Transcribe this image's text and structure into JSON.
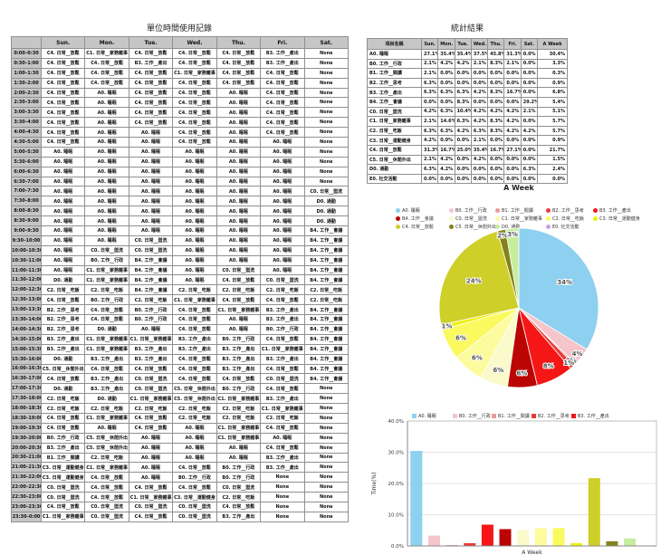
{
  "record_table": {
    "title": "單位時間使用記錄",
    "columns": [
      "Sun.",
      "Mon.",
      "Tue.",
      "Wed.",
      "Thu.",
      "Fri.",
      "Sat."
    ],
    "rows": [
      {
        "time": "0:00–0:30",
        "cells": [
          "C4",
          "C1",
          "C4",
          "C4",
          "C4",
          "B3",
          "None"
        ]
      },
      {
        "time": "0:30–1:00",
        "cells": [
          "C4",
          "C4",
          "B3",
          "C4",
          "C4",
          "B3",
          "None"
        ]
      },
      {
        "time": "1:00–1:30",
        "cells": [
          "C4",
          "C4",
          "C4",
          "C1",
          "C4",
          "C4",
          "None"
        ]
      },
      {
        "time": "1:30–2:00",
        "cells": [
          "C4",
          "C4",
          "C4",
          "C4",
          "C4",
          "C4",
          "None"
        ]
      },
      {
        "time": "2:00–2:30",
        "cells": [
          "C4",
          "A0",
          "C4",
          "C4",
          "A0",
          "C4",
          "None"
        ]
      },
      {
        "time": "2:30–3:00",
        "cells": [
          "C4",
          "A0",
          "C4",
          "C4",
          "A0",
          "C4",
          "None"
        ]
      },
      {
        "time": "3:00–3:30",
        "cells": [
          "C4",
          "A0",
          "C4",
          "C4",
          "A0",
          "C4",
          "None"
        ]
      },
      {
        "time": "3:30–4:00",
        "cells": [
          "C4",
          "A0",
          "C4",
          "C4",
          "A0",
          "C4",
          "None"
        ]
      },
      {
        "time": "4:00–4:30",
        "cells": [
          "C4",
          "A0",
          "A0",
          "C4",
          "A0",
          "C4",
          "None"
        ]
      },
      {
        "time": "4:30–5:00",
        "cells": [
          "C4",
          "A0",
          "A0",
          "C4",
          "A0",
          "A0",
          "None"
        ]
      },
      {
        "time": "5:00–5:30",
        "cells": [
          "A0",
          "A0",
          "A0",
          "A0",
          "A0",
          "A0",
          "None"
        ]
      },
      {
        "time": "5:30–6:00",
        "cells": [
          "A0",
          "A0",
          "A0",
          "A0",
          "A0",
          "A0",
          "None"
        ]
      },
      {
        "time": "6:00–6:30",
        "cells": [
          "A0",
          "A0",
          "A0",
          "A0",
          "A0",
          "A0",
          "None"
        ]
      },
      {
        "time": "6:30–7:00",
        "cells": [
          "A0",
          "A0",
          "A0",
          "A0",
          "A0",
          "A0",
          "None"
        ]
      },
      {
        "time": "7:00–7:30",
        "cells": [
          "A0",
          "A0",
          "A0",
          "A0",
          "A0",
          "A0",
          "C0"
        ]
      },
      {
        "time": "7:30–8:00",
        "cells": [
          "A0",
          "A0",
          "A0",
          "A0",
          "A0",
          "A0",
          "D0"
        ]
      },
      {
        "time": "8:00–8:30",
        "cells": [
          "A0",
          "A0",
          "A0",
          "A0",
          "A0",
          "A0",
          "D0"
        ]
      },
      {
        "time": "8:30–9:00",
        "cells": [
          "A0",
          "A0",
          "A0",
          "A0",
          "A0",
          "A0",
          "D0"
        ]
      },
      {
        "time": "9:00–9:30",
        "cells": [
          "A0",
          "A0",
          "A0",
          "A0",
          "A0",
          "A0",
          "B4"
        ]
      },
      {
        "time": "9:30–10:00",
        "cells": [
          "A0",
          "A0",
          "C0",
          "A0",
          "A0",
          "A0",
          "B4"
        ]
      },
      {
        "time": "10:00–10:30",
        "cells": [
          "A0",
          "C0",
          "C0",
          "A0",
          "A0",
          "A0",
          "B4"
        ]
      },
      {
        "time": "10:30–11:00",
        "cells": [
          "A0",
          "B0",
          "B4",
          "A0",
          "A0",
          "A0",
          "B4"
        ]
      },
      {
        "time": "11:00–11:30",
        "cells": [
          "A0",
          "C1",
          "B4",
          "A0",
          "C0",
          "A0",
          "B4"
        ]
      },
      {
        "time": "11:30–12:00",
        "cells": [
          "D0",
          "C1",
          "B4",
          "A0",
          "C4",
          "C0",
          "B4"
        ]
      },
      {
        "time": "12:00–12:30",
        "cells": [
          "C2",
          "C2",
          "B4",
          "C2",
          "C2",
          "C2",
          "C2"
        ]
      },
      {
        "time": "12:30–13:00",
        "cells": [
          "C4",
          "B0",
          "C2",
          "C1",
          "C4",
          "C4",
          "C2"
        ]
      },
      {
        "time": "13:00–13:30",
        "cells": [
          "B2",
          "C4",
          "B0",
          "C4",
          "C1",
          "B3",
          "B4"
        ]
      },
      {
        "time": "13:30–14:00",
        "cells": [
          "B2",
          "C4",
          "B0",
          "C4",
          "A0",
          "B3",
          "B4"
        ]
      },
      {
        "time": "14:00–14:30",
        "cells": [
          "B2",
          "D0",
          "A0",
          "C4",
          "A0",
          "B0",
          "B4"
        ]
      },
      {
        "time": "14:30–15:00",
        "cells": [
          "B3",
          "C1",
          "C1",
          "B3",
          "B0",
          "C4",
          "B4"
        ]
      },
      {
        "time": "15:00–15:30",
        "cells": [
          "B3",
          "C1",
          "B3",
          "B3",
          "B3",
          "C1",
          "B4"
        ]
      },
      {
        "time": "15:30–16:00",
        "cells": [
          "D0",
          "B3",
          "B3",
          "C4",
          "B3",
          "B3",
          "B4"
        ]
      },
      {
        "time": "16:00–16:30",
        "cells": [
          "C5",
          "C4",
          "C4",
          "C4",
          "B3",
          "C4",
          "B4"
        ]
      },
      {
        "time": "16:30–17:00",
        "cells": [
          "C4",
          "B3",
          "C0",
          "C4",
          "C4",
          "C0",
          "B4"
        ]
      },
      {
        "time": "17:00–17:30",
        "cells": [
          "D0",
          "B3",
          "C0",
          "C5",
          "B0",
          "C4",
          "None"
        ]
      },
      {
        "time": "17:30–18:00",
        "cells": [
          "C2",
          "D0",
          "C1",
          "C5",
          "C1",
          "B3",
          "None"
        ]
      },
      {
        "time": "18:00–18:30",
        "cells": [
          "C2",
          "C2",
          "C2",
          "C2",
          "C2",
          "C1",
          "None"
        ]
      },
      {
        "time": "18:30–19:00",
        "cells": [
          "C4",
          "C1",
          "C4",
          "C2",
          "C2",
          "C2",
          "None"
        ]
      },
      {
        "time": "19:00–19:30",
        "cells": [
          "C4",
          "A0",
          "C4",
          "A0",
          "C1",
          "C4",
          "None"
        ]
      },
      {
        "time": "19:30–20:00",
        "cells": [
          "B0",
          "C5",
          "A0",
          "A0",
          "C1",
          "A0",
          "None"
        ]
      },
      {
        "time": "20:00–20:30",
        "cells": [
          "B3",
          "C5",
          "A0",
          "A0",
          "A0",
          "C4",
          "None"
        ]
      },
      {
        "time": "20:30–21:00",
        "cells": [
          "B1",
          "C2",
          "A0",
          "A0",
          "A0",
          "B3",
          "None"
        ]
      },
      {
        "time": "21:00–21:30",
        "cells": [
          "C3",
          "C1",
          "A0",
          "C4",
          "B0",
          "B3",
          "None"
        ]
      },
      {
        "time": "21:30–22:00",
        "cells": [
          "C3",
          "C4",
          "A0",
          "B0",
          "B0",
          "None",
          "None"
        ]
      },
      {
        "time": "22:00–22:30",
        "cells": [
          "C0",
          "C4",
          "C4",
          "C4",
          "C0",
          "None",
          "None"
        ]
      },
      {
        "time": "22:30–23:00",
        "cells": [
          "C0",
          "C4",
          "C1",
          "C3",
          "C2",
          "None",
          "None"
        ]
      },
      {
        "time": "23:00–23:30",
        "cells": [
          "C4",
          "C0",
          "C0",
          "C0",
          "C4",
          "None",
          "None"
        ]
      },
      {
        "time": "23:30–0:00",
        "cells": [
          "C1",
          "C0",
          "C4",
          "C0",
          "B3",
          "None",
          "None"
        ]
      }
    ]
  },
  "none_label": "None",
  "categories": [
    {
      "code": "A0",
      "label": "A0. 睡眠",
      "color": "#8DD0F0"
    },
    {
      "code": "B0",
      "label": "B0. 工作__行政",
      "color": "#F6C4CB"
    },
    {
      "code": "B1",
      "label": "B1. 工作__閱讀",
      "color": "#F09898"
    },
    {
      "code": "B2",
      "label": "B2. 工作__思考",
      "color": "#E93A3A"
    },
    {
      "code": "B3",
      "label": "B3. 工作__產出",
      "color": "#F51616"
    },
    {
      "code": "B4",
      "label": "B4. 工作__會議",
      "color": "#BB0404"
    },
    {
      "code": "C0",
      "label": "C0. 日常__盥洗",
      "color": "#FAFACB"
    },
    {
      "code": "C1",
      "label": "C1. 日常__家務雜事",
      "color": "#FCFC9E"
    },
    {
      "code": "C2",
      "label": "C2. 日常__吃飯",
      "color": "#FAFA5E"
    },
    {
      "code": "C3",
      "label": "C3. 日常__運動健身",
      "color": "#EFEF10"
    },
    {
      "code": "C4",
      "label": "C4. 日常__放鬆",
      "color": "#CFCF29"
    },
    {
      "code": "C5",
      "label": "C5. 日常__休閒外出",
      "color": "#83831B"
    },
    {
      "code": "D0",
      "label": "D0. 通勤",
      "color": "#C6EE9E"
    },
    {
      "code": "E0",
      "label": "E0. 社交活動",
      "color": "#CF9FE8"
    }
  ],
  "stats_table": {
    "title": "統計結果",
    "columns": [
      "項目名稱",
      "Sun.",
      "Mon.",
      "Tue.",
      "Wed.",
      "Thu.",
      "Fri.",
      "Sat.",
      "A Week"
    ],
    "rows": [
      {
        "code": "A0",
        "values": [
          "27.1%",
          "35.4%",
          "35.4%",
          "37.5%",
          "45.8%",
          "31.3%",
          "0.0%",
          "30.4%"
        ]
      },
      {
        "code": "B0",
        "values": [
          "2.1%",
          "4.2%",
          "4.2%",
          "2.1%",
          "8.3%",
          "2.1%",
          "0.0%",
          "3.3%"
        ]
      },
      {
        "code": "B1",
        "values": [
          "2.1%",
          "0.0%",
          "0.0%",
          "0.0%",
          "0.0%",
          "0.0%",
          "0.0%",
          "0.3%"
        ]
      },
      {
        "code": "B2",
        "values": [
          "6.3%",
          "0.0%",
          "0.0%",
          "0.0%",
          "0.0%",
          "0.0%",
          "0.0%",
          "0.9%"
        ]
      },
      {
        "code": "B3",
        "values": [
          "6.3%",
          "6.3%",
          "6.3%",
          "4.2%",
          "8.3%",
          "16.7%",
          "0.0%",
          "6.8%"
        ]
      },
      {
        "code": "B4",
        "values": [
          "0.0%",
          "0.0%",
          "8.3%",
          "0.0%",
          "0.0%",
          "0.0%",
          "29.2%",
          "5.4%"
        ]
      },
      {
        "code": "C0",
        "values": [
          "4.2%",
          "6.3%",
          "10.4%",
          "4.2%",
          "4.2%",
          "4.2%",
          "2.1%",
          "5.1%"
        ]
      },
      {
        "code": "C1",
        "values": [
          "2.1%",
          "14.6%",
          "6.3%",
          "4.2%",
          "8.3%",
          "4.2%",
          "0.0%",
          "5.7%"
        ]
      },
      {
        "code": "C2",
        "values": [
          "6.3%",
          "6.3%",
          "4.2%",
          "6.3%",
          "8.3%",
          "4.2%",
          "4.2%",
          "5.7%"
        ]
      },
      {
        "code": "C3",
        "values": [
          "4.2%",
          "0.0%",
          "0.0%",
          "2.1%",
          "0.0%",
          "0.0%",
          "0.0%",
          "0.9%"
        ]
      },
      {
        "code": "C4",
        "values": [
          "31.3%",
          "16.7%",
          "25.0%",
          "35.4%",
          "16.7%",
          "27.1%",
          "0.0%",
          "21.7%"
        ]
      },
      {
        "code": "C5",
        "values": [
          "2.1%",
          "4.2%",
          "0.0%",
          "4.2%",
          "0.0%",
          "0.0%",
          "0.0%",
          "1.5%"
        ]
      },
      {
        "code": "D0",
        "values": [
          "6.3%",
          "4.2%",
          "0.0%",
          "0.0%",
          "0.0%",
          "0.0%",
          "6.3%",
          "2.4%"
        ]
      },
      {
        "code": "E0",
        "values": [
          "0.0%",
          "0.0%",
          "0.0%",
          "0.0%",
          "0.0%",
          "0.0%",
          "0.0%",
          "0.0%"
        ]
      }
    ]
  },
  "chart_data": [
    {
      "type": "pie",
      "title": "A Week",
      "labels": [
        "A0. 睡眠",
        "B0. 工作__行政",
        "B1. 工作__閱讀",
        "B2. 工作__思考",
        "B3. 工作__產出",
        "B4. 工作__會議",
        "C0. 日常__盥洗",
        "C1. 日常__家務雜事",
        "C2. 日常__吃飯",
        "C3. 日常__運動健身",
        "C4. 日常__放鬆",
        "C5. 日常__休閒外出",
        "D0. 通勤",
        "E0. 社交活動"
      ],
      "values": [
        30.4,
        3.3,
        0.3,
        0.9,
        6.8,
        5.4,
        5.1,
        5.7,
        5.7,
        0.9,
        21.7,
        1.5,
        2.4,
        0.0
      ],
      "slice_labels": [
        "34%",
        "4%",
        "0%",
        "1%",
        "8%",
        "6%",
        "6%",
        "6%",
        "6%",
        "1%",
        "24%",
        "2%",
        "3%",
        ""
      ],
      "legend_position": "top",
      "start_angle_deg": 0,
      "direction": "clockwise"
    },
    {
      "type": "bar",
      "categories": [
        "A0. 睡眠",
        "B0. 工作__行政",
        "B1. 工作__閱讀",
        "B2. 工作__思考",
        "B3. 工作__產出",
        "B4. 工作__會議",
        "C0. 日常__盥洗",
        "C1. 日常__家務雜事",
        "C2. 日常__吃飯",
        "C3. 日常__運動健身",
        "C4. 日常__放鬆",
        "C5. 日常__休閒外出",
        "D0. 通勤",
        "E0. 社交活動"
      ],
      "values": [
        30.4,
        3.3,
        0.3,
        0.9,
        6.8,
        5.4,
        5.1,
        5.7,
        5.7,
        0.9,
        21.7,
        1.5,
        2.4,
        0.0
      ],
      "xlabel": "A Week",
      "ylabel": "Time(%)",
      "ylim": [
        0,
        40
      ],
      "ytick_labels": [
        "0.0%",
        "10.0%",
        "20.0%",
        "30.0%",
        "40.0%"
      ],
      "grid": true,
      "legend_position": "top"
    }
  ]
}
